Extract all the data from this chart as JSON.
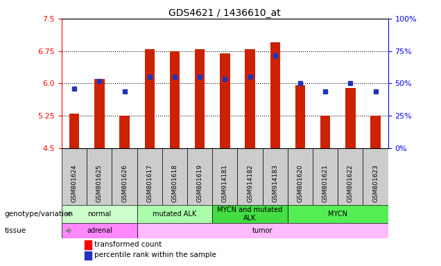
{
  "title": "GDS4621 / 1436610_at",
  "samples": [
    "GSM801624",
    "GSM801625",
    "GSM801626",
    "GSM801617",
    "GSM801618",
    "GSM801619",
    "GSM914181",
    "GSM914182",
    "GSM914183",
    "GSM801620",
    "GSM801621",
    "GSM801622",
    "GSM801623"
  ],
  "red_values": [
    5.3,
    6.1,
    5.25,
    6.8,
    6.75,
    6.8,
    6.7,
    6.8,
    6.95,
    5.95,
    5.25,
    5.9,
    5.25
  ],
  "blue_values": [
    5.88,
    6.05,
    5.82,
    6.15,
    6.15,
    6.15,
    6.1,
    6.15,
    6.65,
    6.0,
    5.82,
    6.0,
    5.82
  ],
  "ylim": [
    4.5,
    7.5
  ],
  "yticks_left": [
    4.5,
    5.25,
    6.0,
    6.75,
    7.5
  ],
  "yticks_right_pct": [
    0,
    25,
    50,
    75,
    100
  ],
  "bar_bottom": 4.5,
  "bar_color": "#cc2200",
  "blue_color": "#2233bb",
  "genotype_groups": [
    {
      "label": "normal",
      "start": 0,
      "end": 3,
      "color": "#ccffcc"
    },
    {
      "label": "mutated ALK",
      "start": 3,
      "end": 6,
      "color": "#aaffaa"
    },
    {
      "label": "MYCN and mutated\nALK",
      "start": 6,
      "end": 9,
      "color": "#44dd44"
    },
    {
      "label": "MYCN",
      "start": 9,
      "end": 13,
      "color": "#55ee55"
    }
  ],
  "tissue_groups": [
    {
      "label": "adrenal",
      "start": 0,
      "end": 3,
      "color": "#ff88ff"
    },
    {
      "label": "tumor",
      "start": 3,
      "end": 13,
      "color": "#ffbbff"
    }
  ],
  "legend_red": "transformed count",
  "legend_blue": "percentile rank within the sample",
  "left_label_geno": "genotype/variation",
  "left_label_tissue": "tissue",
  "gray_box_color": "#cccccc",
  "grid_color": "black",
  "title_fontsize": 10
}
